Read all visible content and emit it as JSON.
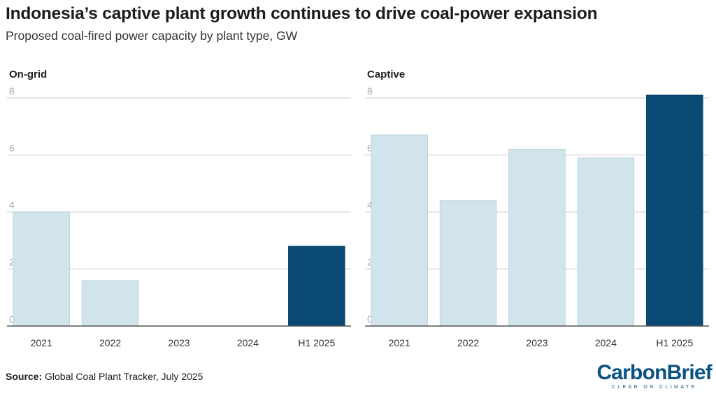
{
  "header": {
    "title": "Indonesia’s captive plant growth continues to drive coal-power expansion",
    "subtitle": "Proposed coal-fired power capacity by plant type, GW"
  },
  "footer": {
    "source_label": "Source:",
    "source_text": "Global Coal Plant Tracker, July 2025",
    "logo": "CarbonBrief",
    "logo_tagline": "CLEAR ON CLIMATE"
  },
  "colors": {
    "light_bar": "#d2e4eb",
    "highlight_bar": "#0a4a75",
    "gridline": "#dddddd",
    "baseline": "#555555"
  },
  "chart_data": [
    {
      "type": "bar",
      "title": "On-grid",
      "categories": [
        "2021",
        "2022",
        "2023",
        "2024",
        "H1 2025"
      ],
      "values": [
        4.0,
        1.6,
        0,
        0,
        2.8
      ],
      "highlight": [
        "H1 2025"
      ],
      "ylim": [
        0,
        8
      ],
      "yticks": [
        0,
        2,
        4,
        6,
        8
      ],
      "xlabel": "",
      "ylabel": "GW"
    },
    {
      "type": "bar",
      "title": "Captive",
      "categories": [
        "2021",
        "2022",
        "2023",
        "2024",
        "H1 2025"
      ],
      "values": [
        6.7,
        4.4,
        6.2,
        5.9,
        8.1
      ],
      "highlight": [
        "H1 2025"
      ],
      "ylim": [
        0,
        8
      ],
      "yticks": [
        0,
        2,
        4,
        6,
        8
      ],
      "xlabel": "",
      "ylabel": "GW"
    }
  ]
}
